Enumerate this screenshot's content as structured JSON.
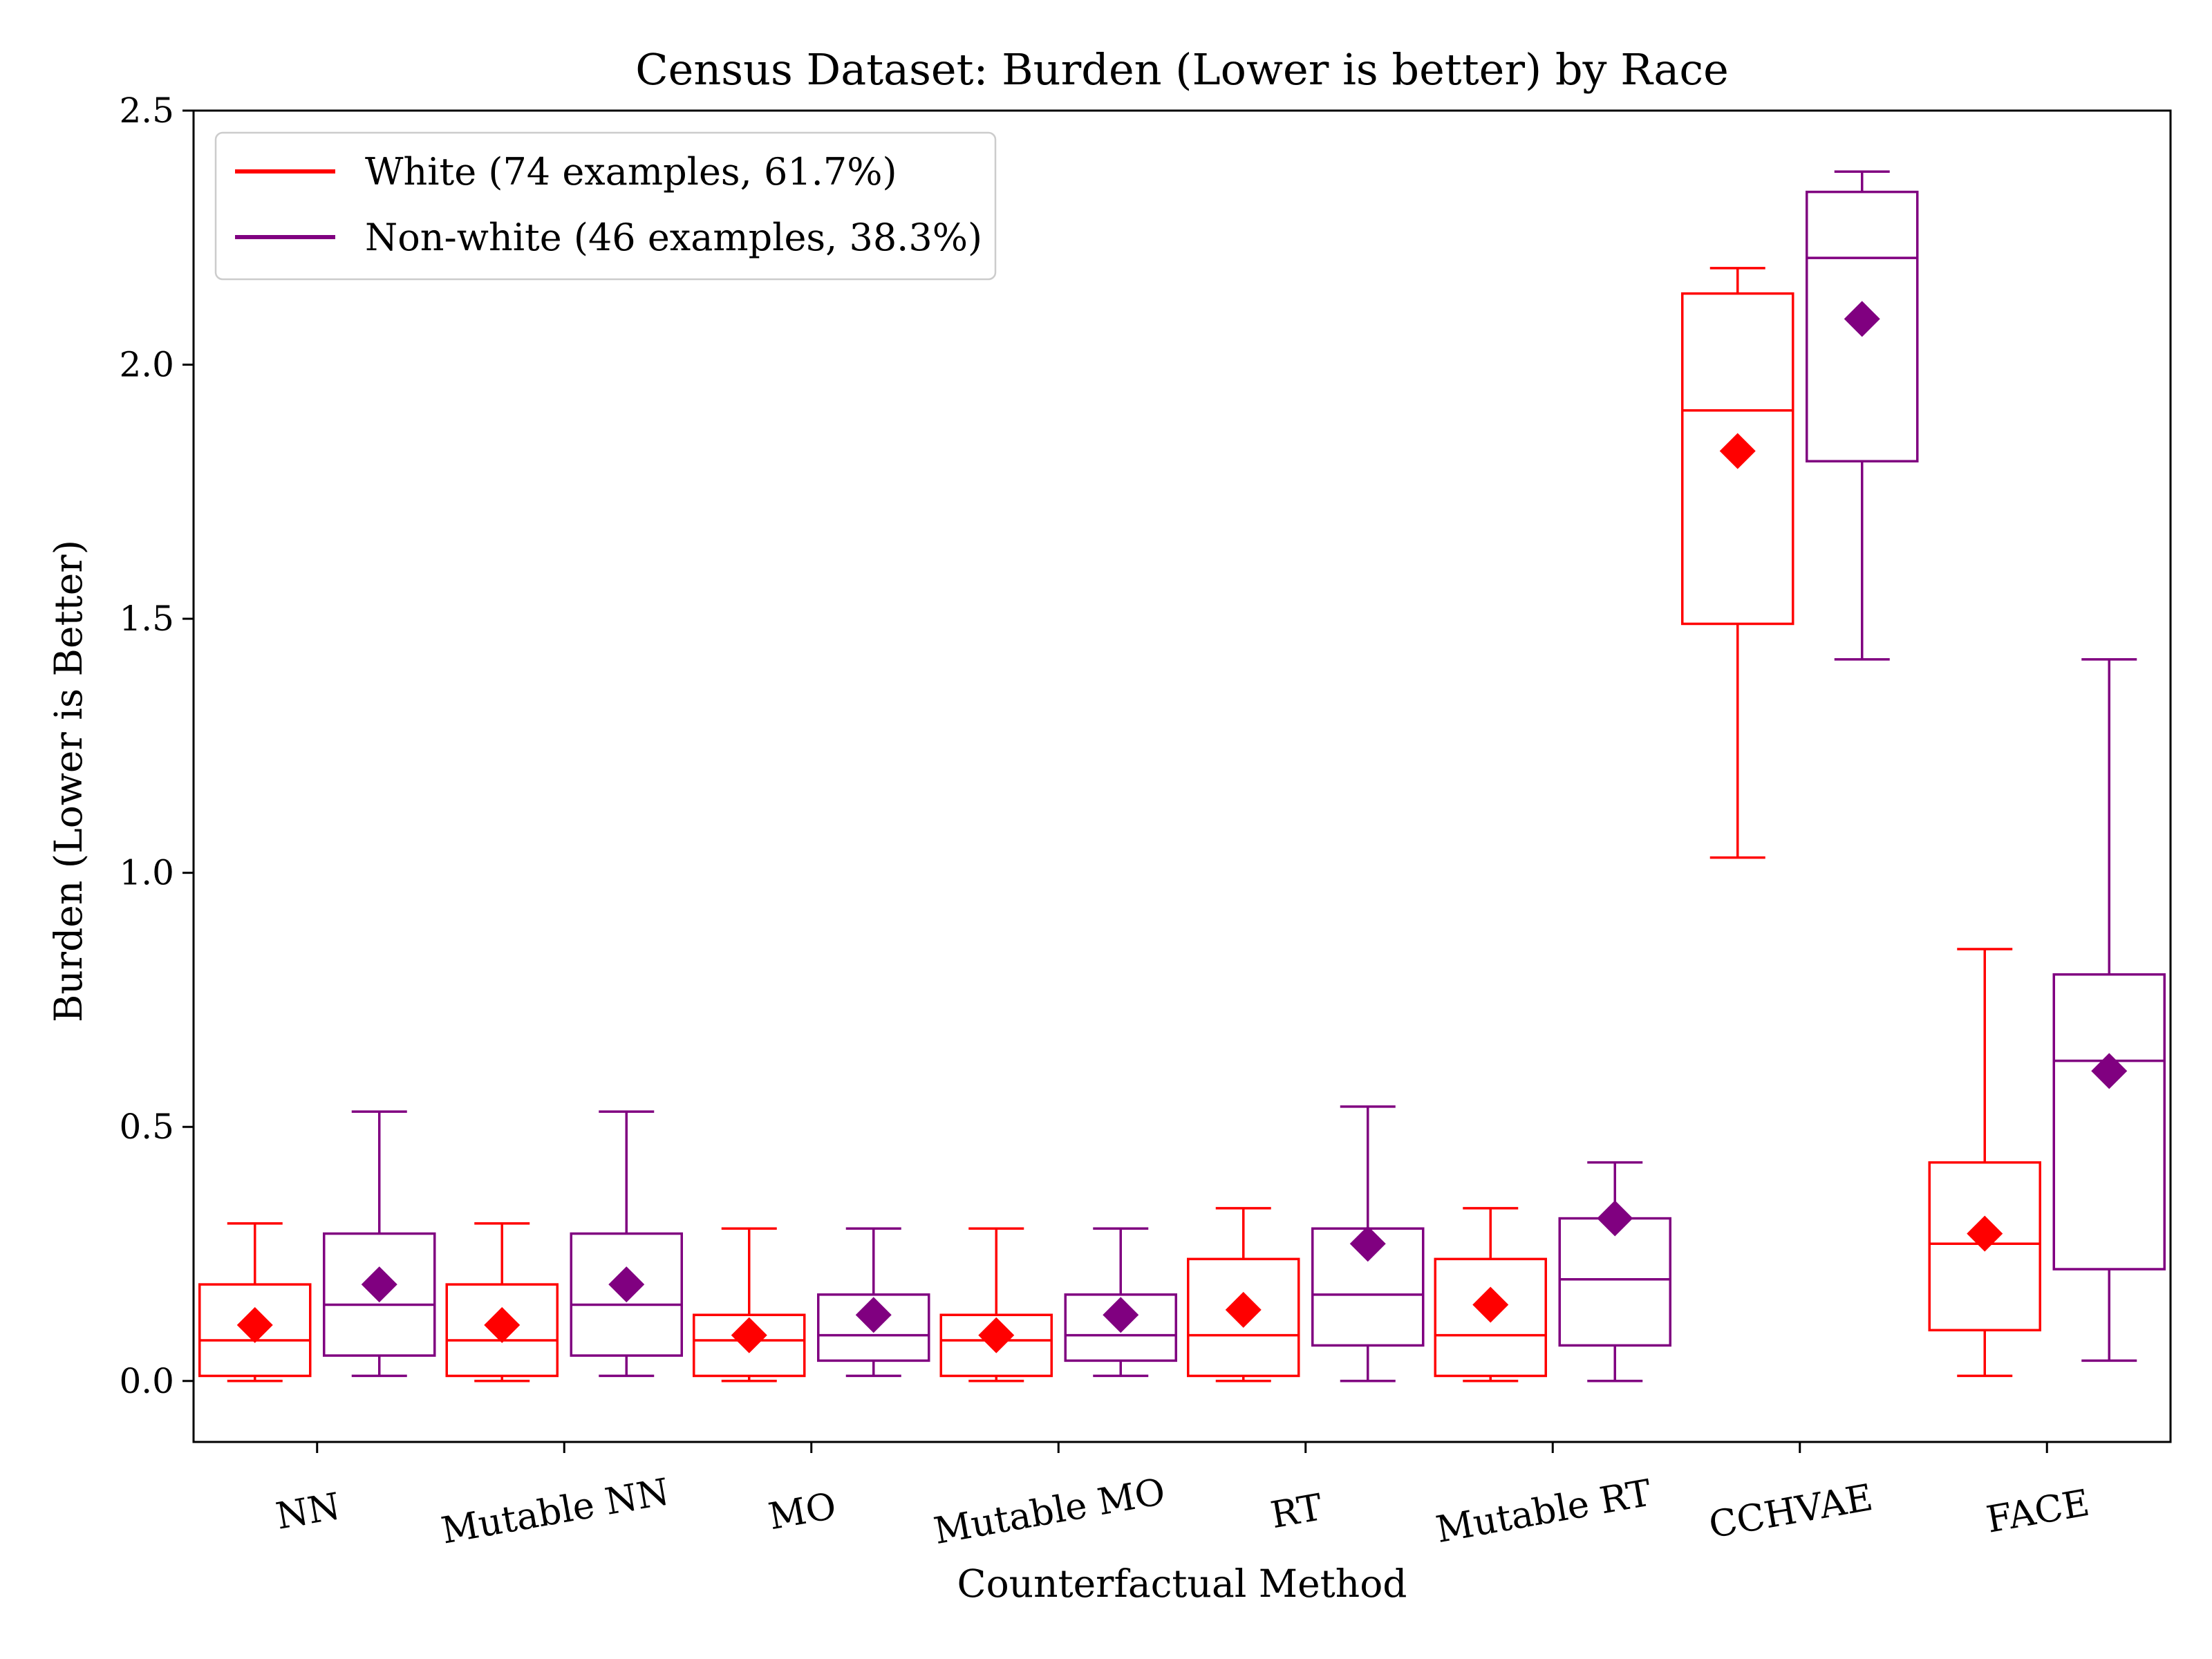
{
  "chart_data": {
    "type": "box",
    "title": "Census Dataset: Burden (Lower is better) by Race",
    "xlabel": "Counterfactual Method",
    "ylabel": "Burden (Lower is Better)",
    "ylim": [
      -0.12,
      2.5
    ],
    "yticks": [
      "0.0",
      "0.5",
      "1.0",
      "1.5",
      "2.0",
      "2.5"
    ],
    "ytick_values": [
      0,
      0.5,
      1.0,
      1.5,
      2.0,
      2.5
    ],
    "grid": false,
    "legend_position": "top-left",
    "categories": [
      "NN",
      "Mutable NN",
      "MO",
      "Mutable MO",
      "RT",
      "Mutable RT",
      "CCHVAE",
      "FACE"
    ],
    "series": [
      {
        "name": "White (74 examples, 61.7%)",
        "color": "#ff0000",
        "boxes": [
          {
            "whisker_low": 0.0,
            "q1": 0.01,
            "median": 0.08,
            "q3": 0.19,
            "whisker_high": 0.31,
            "mean": 0.11
          },
          {
            "whisker_low": 0.0,
            "q1": 0.01,
            "median": 0.08,
            "q3": 0.19,
            "whisker_high": 0.31,
            "mean": 0.11
          },
          {
            "whisker_low": 0.0,
            "q1": 0.01,
            "median": 0.08,
            "q3": 0.13,
            "whisker_high": 0.3,
            "mean": 0.09
          },
          {
            "whisker_low": 0.0,
            "q1": 0.01,
            "median": 0.08,
            "q3": 0.13,
            "whisker_high": 0.3,
            "mean": 0.09
          },
          {
            "whisker_low": 0.0,
            "q1": 0.01,
            "median": 0.09,
            "q3": 0.24,
            "whisker_high": 0.34,
            "mean": 0.14
          },
          {
            "whisker_low": 0.0,
            "q1": 0.01,
            "median": 0.09,
            "q3": 0.24,
            "whisker_high": 0.34,
            "mean": 0.15
          },
          {
            "whisker_low": 1.03,
            "q1": 1.49,
            "median": 1.91,
            "q3": 2.14,
            "whisker_high": 2.19,
            "mean": 1.83
          },
          {
            "whisker_low": 0.01,
            "q1": 0.1,
            "median": 0.27,
            "q3": 0.43,
            "whisker_high": 0.85,
            "mean": 0.29
          }
        ]
      },
      {
        "name": "Non-white (46 examples, 38.3%)",
        "color": "#800080",
        "boxes": [
          {
            "whisker_low": 0.01,
            "q1": 0.05,
            "median": 0.15,
            "q3": 0.29,
            "whisker_high": 0.53,
            "mean": 0.19
          },
          {
            "whisker_low": 0.01,
            "q1": 0.05,
            "median": 0.15,
            "q3": 0.29,
            "whisker_high": 0.53,
            "mean": 0.19
          },
          {
            "whisker_low": 0.01,
            "q1": 0.04,
            "median": 0.09,
            "q3": 0.17,
            "whisker_high": 0.3,
            "mean": 0.13
          },
          {
            "whisker_low": 0.01,
            "q1": 0.04,
            "median": 0.09,
            "q3": 0.17,
            "whisker_high": 0.3,
            "mean": 0.13
          },
          {
            "whisker_low": 0.0,
            "q1": 0.07,
            "median": 0.17,
            "q3": 0.3,
            "whisker_high": 0.54,
            "mean": 0.27
          },
          {
            "whisker_low": 0.0,
            "q1": 0.07,
            "median": 0.2,
            "q3": 0.32,
            "whisker_high": 0.43,
            "mean": 0.32
          },
          {
            "whisker_low": 1.42,
            "q1": 1.81,
            "median": 2.21,
            "q3": 2.34,
            "whisker_high": 2.38,
            "mean": 2.09
          },
          {
            "whisker_low": 0.04,
            "q1": 0.22,
            "median": 0.63,
            "q3": 0.8,
            "whisker_high": 1.42,
            "mean": 0.61
          }
        ]
      }
    ]
  }
}
